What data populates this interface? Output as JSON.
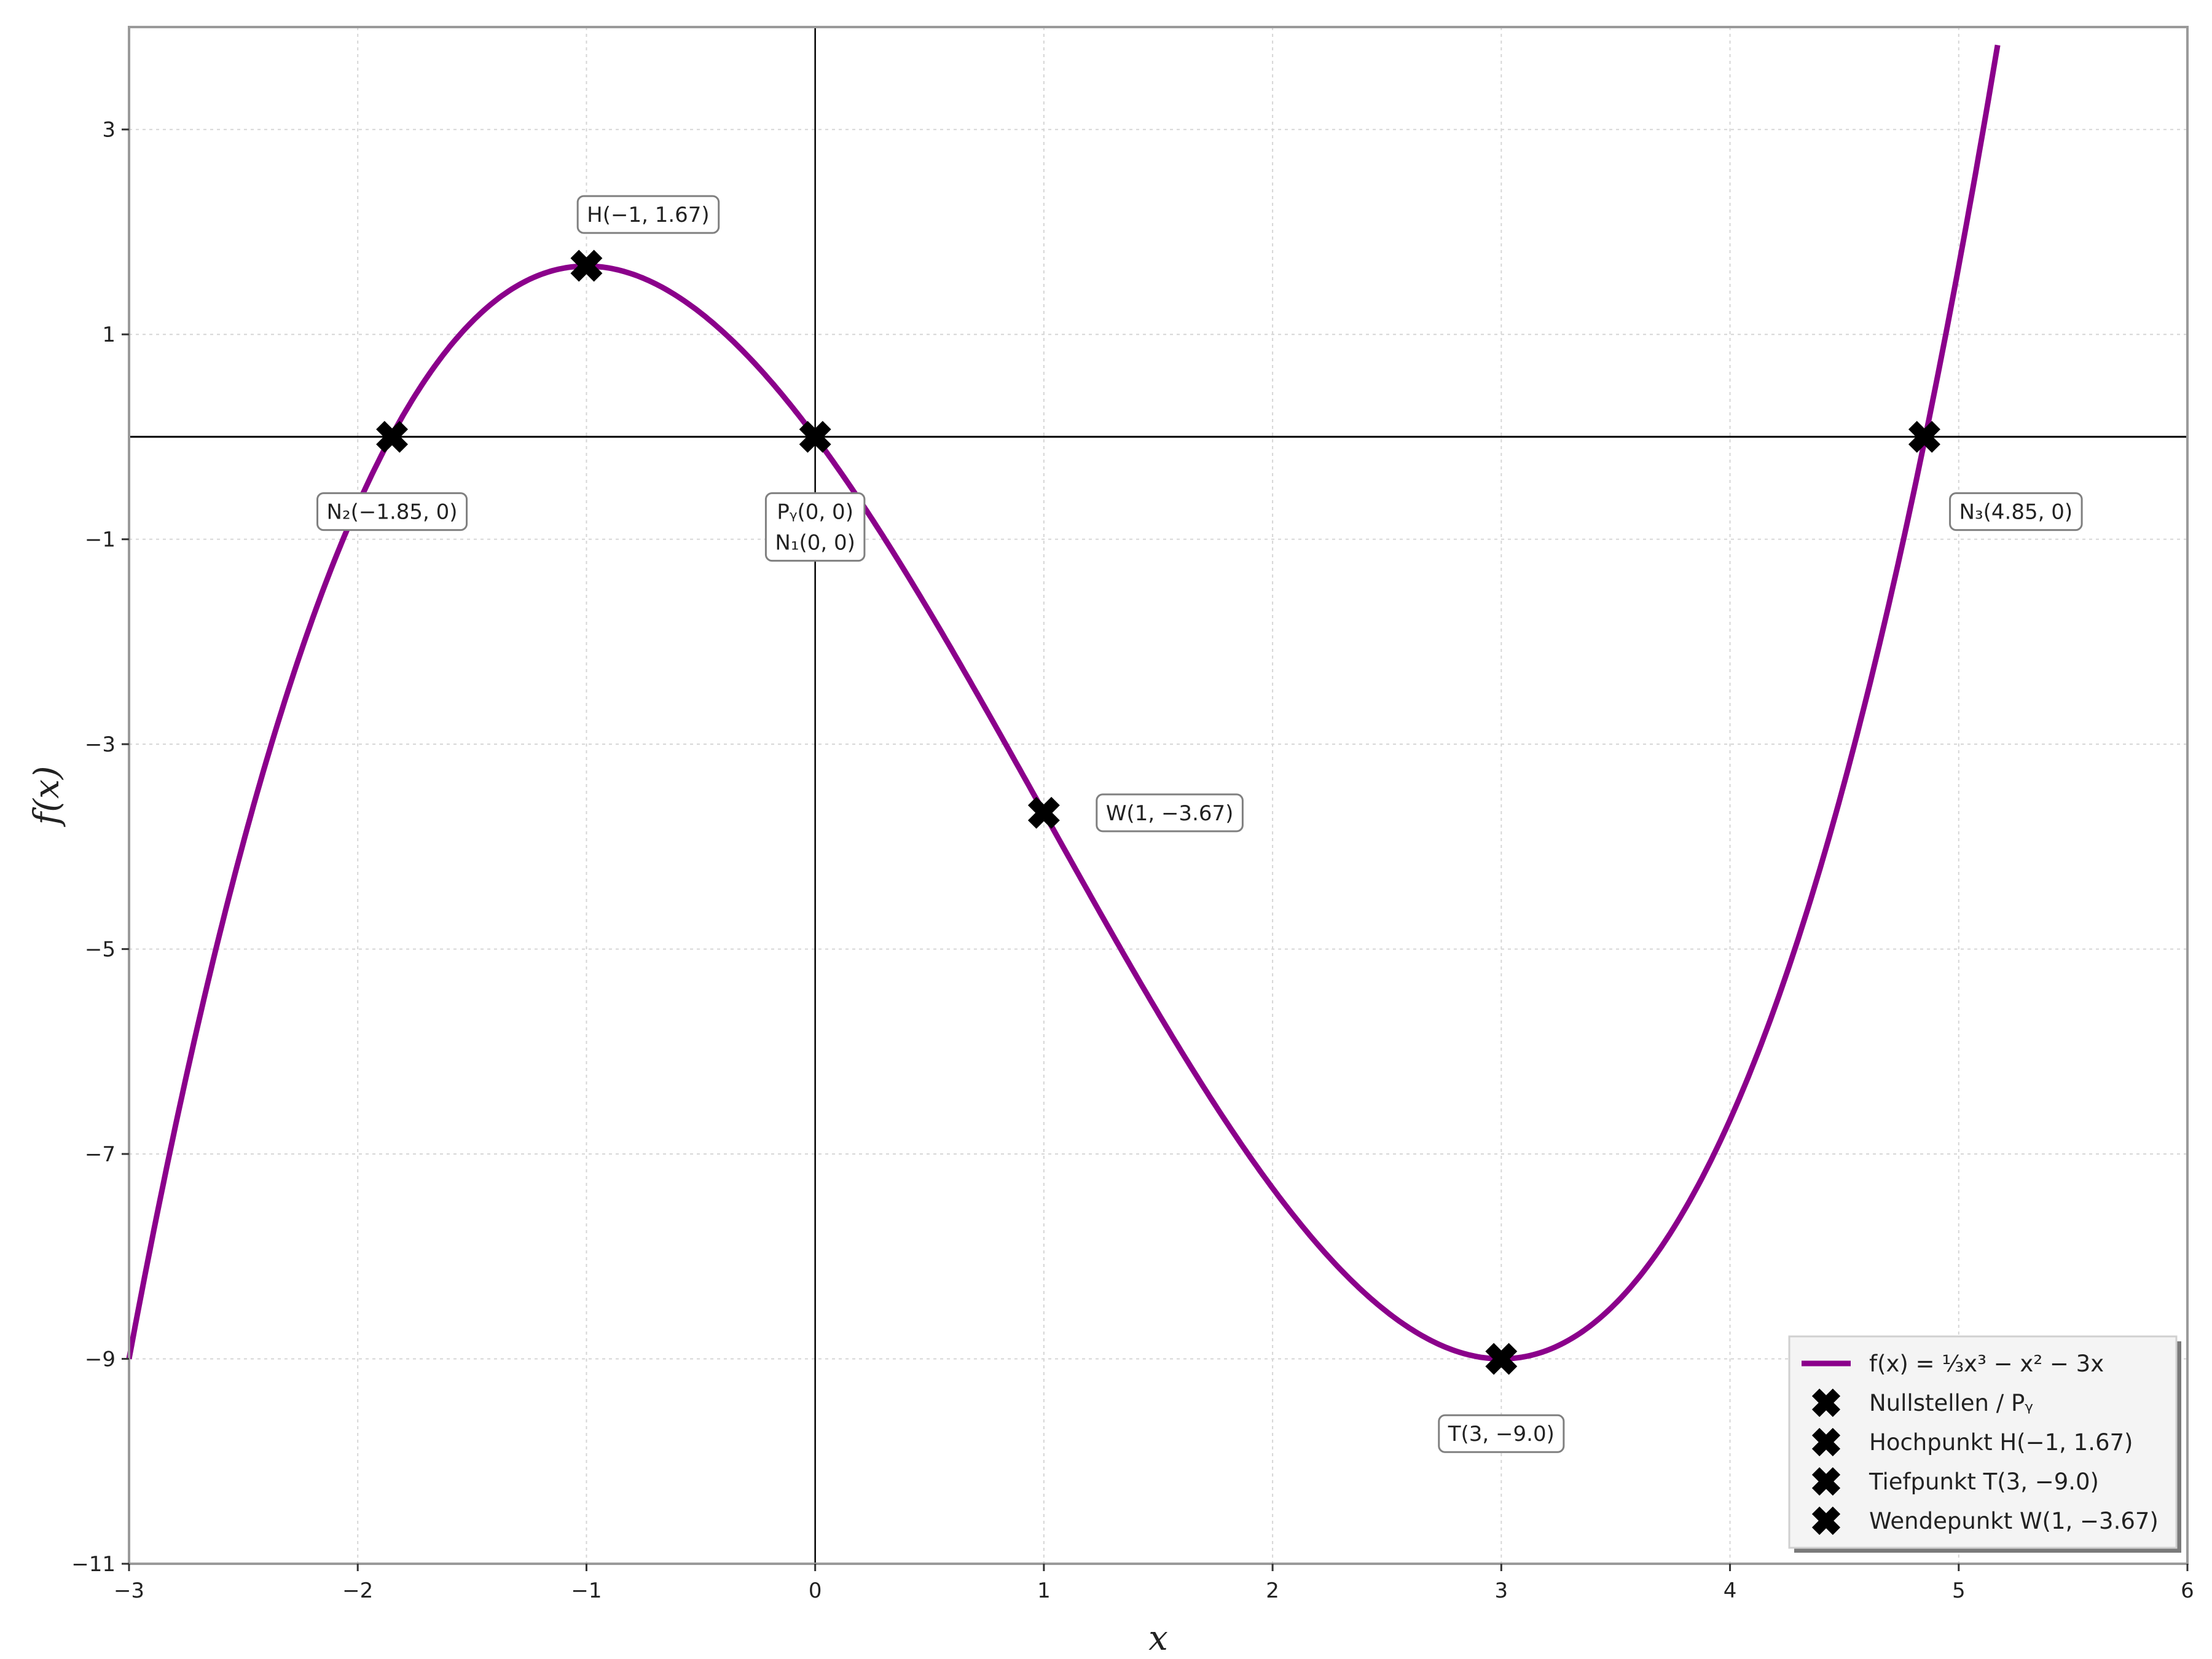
{
  "chart_data": {
    "type": "line",
    "xlabel": "x",
    "ylabel": "f(x)",
    "xlim": [
      -3,
      6
    ],
    "ylim": [
      -11,
      4
    ],
    "x_ticks": [
      -3,
      -2,
      -1,
      0,
      1,
      2,
      3,
      4,
      5,
      6
    ],
    "y_ticks": [
      3,
      1,
      -1,
      -3,
      -5,
      -7,
      -9,
      -11
    ],
    "x_tick_labels": [
      "−3",
      "−2",
      "−1",
      "0",
      "1",
      "2",
      "3",
      "4",
      "5",
      "6"
    ],
    "y_tick_labels": [
      "3",
      "1",
      "−1",
      "−3",
      "−5",
      "−7",
      "−9",
      "−11"
    ],
    "grid": true,
    "series": [
      {
        "name": "f(x) = 1/3 x³ − x² − 3x",
        "color": "#8b008b",
        "coefficients": {
          "a3": 0.3333333,
          "a2": -1,
          "a1": -3,
          "a0": 0
        },
        "x_range": [
          -3,
          5.17
        ]
      }
    ],
    "points": [
      {
        "x": -1.85,
        "y": 0
      },
      {
        "x": 0,
        "y": 0
      },
      {
        "x": 4.85,
        "y": 0
      },
      {
        "x": -1,
        "y": 1.67
      },
      {
        "x": 3,
        "y": -9.0
      },
      {
        "x": 1,
        "y": -3.67
      }
    ],
    "annotations": [
      {
        "id": "n2",
        "x": -1.85,
        "y": -0.73,
        "lines": [
          "N₂(−1.85, 0)"
        ]
      },
      {
        "id": "py-n1",
        "x": 0,
        "y": -0.88,
        "lines": [
          "Pᵧ(0, 0)",
          "N₁(0, 0)"
        ]
      },
      {
        "id": "n3",
        "x": 5.25,
        "y": -0.73,
        "lines": [
          "N₃(4.85, 0)"
        ]
      },
      {
        "id": "h",
        "x": -0.73,
        "y": 2.17,
        "lines": [
          "H(−1, 1.67)"
        ]
      },
      {
        "id": "w",
        "x": 1.55,
        "y": -3.67,
        "lines": [
          "W(1, −3.67)"
        ]
      },
      {
        "id": "t",
        "x": 3.0,
        "y": -9.73,
        "lines": [
          "T(3, −9.0)"
        ]
      }
    ],
    "legend": {
      "position": "lower-right",
      "entries": [
        {
          "label": "f(x) = ⅓x³ − x² − 3x",
          "kind": "line",
          "color": "#8b008b"
        },
        {
          "label": "Nullstellen / Pᵧ",
          "kind": "marker",
          "color": "#000000"
        },
        {
          "label": "Hochpunkt H(−1, 1.67)",
          "kind": "marker",
          "color": "#000000"
        },
        {
          "label": "Tiefpunkt T(3, −9.0)",
          "kind": "marker",
          "color": "#000000"
        },
        {
          "label": "Wendepunkt W(1, −3.67)",
          "kind": "marker",
          "color": "#000000"
        }
      ]
    }
  }
}
